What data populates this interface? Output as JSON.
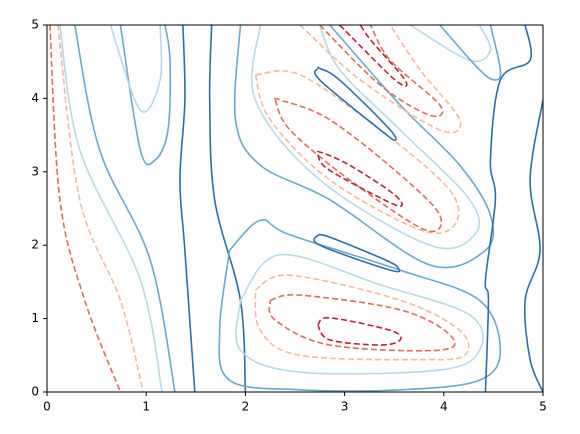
{
  "chart_data": {
    "type": "contour",
    "xlim": [
      0,
      5
    ],
    "ylim": [
      0,
      5
    ],
    "xticks": [
      0,
      1,
      2,
      3,
      4,
      5
    ],
    "yticks": [
      0,
      1,
      2,
      3,
      4,
      5
    ],
    "series": [
      {
        "color": "#2c6fa8",
        "dashed": false,
        "x": [
          1.49,
          1.39,
          1.34,
          1.39,
          1.37
        ],
        "y": [
          0,
          1.93,
          2.89,
          3.98,
          5
        ]
      },
      {
        "color": "#2c6fa8",
        "dashed": false,
        "x": [
          2.0,
          1.95,
          1.69,
          1.64,
          1.66
        ],
        "y": [
          0,
          1.25,
          2.62,
          3.98,
          5
        ]
      },
      {
        "color": "#6aa8c9",
        "dashed": false,
        "x": [
          0.74,
          0.94,
          1.09,
          1.22,
          1.24,
          1.19
        ],
        "y": [
          5,
          3.3,
          3.16,
          3.57,
          4.52,
          5
        ]
      },
      {
        "color": "#6aa8c9",
        "dashed": false,
        "x": [
          0.28,
          0.53,
          1.04,
          1.29
        ],
        "y": [
          5,
          3.3,
          1.8,
          0
        ]
      },
      {
        "color": "#b8d8e6",
        "dashed": false,
        "x": [
          0.64,
          0.94,
          1.14,
          1.14
        ],
        "y": [
          5,
          3.84,
          4.25,
          5
        ]
      },
      {
        "color": "#b8d8e6",
        "dashed": false,
        "x": [
          0.13,
          0.33,
          0.94,
          1.16
        ],
        "y": [
          5,
          3.3,
          1.53,
          0
        ]
      },
      {
        "color": "#d7705a",
        "dashed": true,
        "x": [
          0.03,
          0.13,
          0.38,
          0.74
        ],
        "y": [
          5,
          2.62,
          1.25,
          0
        ]
      },
      {
        "color": "#f4b89a",
        "dashed": true,
        "x": [
          0.11,
          0.33,
          0.74,
          0.97
        ],
        "y": [
          5,
          2.62,
          1.25,
          0
        ]
      },
      {
        "color": "#6aa8c9",
        "dashed": false,
        "x": [
          1.95,
          1.9,
          2.15,
          2.85,
          3.86,
          4.42,
          4.47,
          4.16,
          3.56,
          2.85
        ],
        "y": [
          5,
          3.71,
          3.09,
          2.62,
          1.73,
          1.93,
          2.41,
          3.09,
          3.91,
          5
        ]
      },
      {
        "color": "#b8d8e6",
        "dashed": false,
        "x": [
          2.15,
          2.1,
          2.75,
          3.86,
          4.31,
          4.26,
          3.56,
          2.95,
          2.75
        ],
        "y": [
          5,
          3.98,
          2.89,
          2.0,
          2.14,
          2.62,
          3.57,
          4.39,
          5
        ]
      },
      {
        "color": "#f4b89a",
        "dashed": true,
        "x": [
          2.1,
          2.25,
          2.85,
          3.76,
          4.11,
          4.06,
          3.36,
          2.55,
          2.1
        ],
        "y": [
          4.32,
          3.71,
          2.89,
          2.21,
          2.28,
          2.75,
          3.57,
          4.32,
          4.32
        ]
      },
      {
        "color": "#d7705a",
        "dashed": true,
        "x": [
          2.3,
          2.45,
          3.05,
          3.81,
          3.96,
          3.56,
          2.85,
          2.35,
          2.3
        ],
        "y": [
          3.98,
          3.57,
          2.89,
          2.21,
          2.41,
          2.96,
          3.71,
          3.98,
          3.98
        ]
      },
      {
        "color": "#b2283b",
        "dashed": true,
        "x": [
          2.73,
          2.85,
          3.51,
          3.51,
          3.05,
          2.75,
          2.73
        ],
        "y": [
          3.23,
          3.02,
          2.55,
          2.68,
          3.09,
          3.27,
          3.23
        ]
      },
      {
        "color": "#2c6fa8",
        "dashed": false,
        "x": [
          2.73,
          2.75,
          3.36,
          3.51,
          3.44,
          2.95,
          2.75,
          2.73
        ],
        "y": [
          4.41,
          4.25,
          3.57,
          3.43,
          3.6,
          4.25,
          4.41,
          4.41
        ]
      },
      {
        "color": "#6aa8c9",
        "dashed": false,
        "x": [
          1.84,
          2.15,
          2.45,
          3.56,
          4.36,
          4.57,
          4.36,
          3.56,
          2.55,
          1.84,
          1.74,
          1.84
        ],
        "y": [
          1.93,
          2.34,
          2.14,
          1.66,
          1.25,
          0.57,
          0.16,
          0.03,
          0.03,
          0.16,
          0.84,
          1.93
        ]
      },
      {
        "color": "#b8d8e6",
        "dashed": false,
        "x": [
          1.95,
          2.35,
          3.36,
          4.26,
          4.36,
          3.96,
          2.55,
          1.95,
          1.95
        ],
        "y": [
          1.25,
          1.87,
          1.46,
          1.05,
          0.57,
          0.3,
          0.27,
          0.57,
          1.25
        ]
      },
      {
        "color": "#f4b89a",
        "dashed": true,
        "x": [
          2.1,
          2.45,
          3.56,
          4.16,
          4.21,
          3.76,
          2.55,
          2.15,
          2.1
        ],
        "y": [
          1.39,
          1.59,
          1.25,
          0.84,
          0.5,
          0.44,
          0.5,
          0.84,
          1.39
        ]
      },
      {
        "color": "#d7705a",
        "dashed": true,
        "x": [
          2.25,
          2.55,
          3.56,
          4.06,
          3.96,
          2.85,
          2.3,
          2.25
        ],
        "y": [
          1.25,
          1.32,
          1.12,
          0.78,
          0.57,
          0.64,
          0.98,
          1.25
        ]
      },
      {
        "color": "#b2283b",
        "dashed": true,
        "x": [
          2.73,
          2.85,
          3.46,
          3.56,
          3.36,
          2.85,
          2.73
        ],
        "y": [
          0.91,
          1.01,
          0.84,
          0.71,
          0.64,
          0.71,
          0.91
        ]
      },
      {
        "color": "#2c6fa8",
        "dashed": false,
        "x": [
          2.73,
          2.75,
          3.46,
          3.54,
          3.41,
          2.85,
          2.73
        ],
        "y": [
          2.14,
          2.0,
          1.66,
          1.69,
          1.8,
          2.11,
          2.14
        ]
      },
      {
        "color": "#b2283b",
        "dashed": true,
        "x": [
          2.95,
          3.51,
          3.61,
          3.26,
          3.16
        ],
        "y": [
          5,
          4.25,
          4.25,
          4.8,
          5
        ]
      },
      {
        "color": "#d7705a",
        "dashed": true,
        "x": [
          2.75,
          3.36,
          3.86,
          3.96,
          3.46,
          3.26
        ],
        "y": [
          5,
          4.18,
          3.77,
          3.91,
          4.52,
          5
        ]
      },
      {
        "color": "#f4b89a",
        "dashed": true,
        "x": [
          2.55,
          3.16,
          3.96,
          4.16,
          3.76,
          3.46
        ],
        "y": [
          5,
          4.25,
          3.57,
          3.71,
          4.39,
          5
        ]
      },
      {
        "color": "#b8d8e6",
        "dashed": false,
        "x": [
          3.66,
          4.26,
          4.47,
          4.36
        ],
        "y": [
          5,
          4.52,
          4.66,
          5
        ]
      },
      {
        "color": "#6aa8c9",
        "dashed": false,
        "x": [
          3.96,
          4.36,
          4.52,
          4.57,
          4.47
        ],
        "y": [
          5,
          4.39,
          4.25,
          4.39,
          5
        ]
      },
      {
        "color": "#2c6fa8",
        "dashed": false,
        "x": [
          4.82,
          4.87,
          4.57,
          4.47,
          4.52,
          4.42,
          4.45,
          4.42
        ],
        "y": [
          5,
          4.52,
          4.25,
          3.16,
          2.62,
          1.53,
          1.25,
          0
        ]
      },
      {
        "color": "#2c6fa8",
        "dashed": false,
        "x": [
          5,
          4.87,
          4.97,
          4.82,
          4.87,
          5
        ],
        "y": [
          3.98,
          2.89,
          1.93,
          1.25,
          0.44,
          0
        ]
      }
    ]
  }
}
